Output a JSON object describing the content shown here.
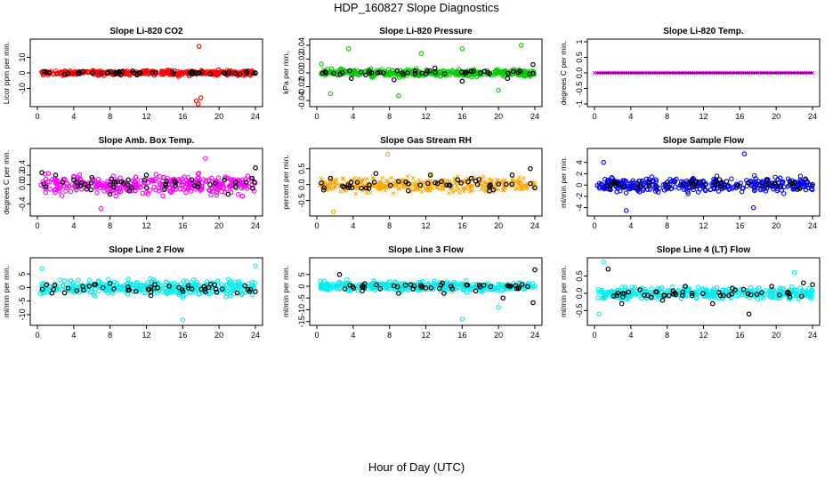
{
  "title": "HDP_160827  Slope Diagnostics",
  "xlabel": "Hour of Day (UTC)",
  "chart_data": [
    {
      "type": "scatter",
      "title": "Slope Li-820 CO2",
      "ylabel": "Licor ppm per min.",
      "ylim": [
        -20,
        20
      ],
      "yticks": [
        -10,
        0,
        10
      ],
      "xlim": [
        0,
        24
      ],
      "xticks": [
        0,
        4,
        8,
        12,
        16,
        20,
        24
      ],
      "color": "#ff0000",
      "marker": "o",
      "spread": 2.0,
      "dark_series": [
        {
          "x": 1,
          "y": 0.5
        },
        {
          "x": 3,
          "y": -1
        },
        {
          "x": 5,
          "y": 1
        },
        {
          "x": 7,
          "y": -0.5
        },
        {
          "x": 9,
          "y": 0.8
        },
        {
          "x": 11,
          "y": -1.2
        },
        {
          "x": 13,
          "y": 0.3
        },
        {
          "x": 15,
          "y": -0.4
        },
        {
          "x": 17,
          "y": 1.1
        },
        {
          "x": 19,
          "y": -0.7
        },
        {
          "x": 21,
          "y": 0.2
        },
        {
          "x": 23,
          "y": 0.9
        },
        {
          "x": 24,
          "y": -0.2
        }
      ],
      "outliers": [
        {
          "x": 17.8,
          "y": 17
        },
        {
          "x": 17.5,
          "y": -18
        },
        {
          "x": 17.7,
          "y": -20
        },
        {
          "x": 18,
          "y": -16
        }
      ]
    },
    {
      "type": "scatter",
      "title": "Slope Li-820 Pressure",
      "ylabel": "kPa per min.",
      "ylim": [
        -0.045,
        0.045
      ],
      "yticks": [
        -0.04,
        -0.02,
        0.0,
        0.02,
        0.04
      ],
      "xlim": [
        0,
        24
      ],
      "xticks": [
        0,
        4,
        8,
        12,
        16,
        20,
        24
      ],
      "color": "#00cc00",
      "marker": "o",
      "spread": 0.006,
      "dark_series": [
        {
          "x": 1,
          "y": 0
        },
        {
          "x": 3.8,
          "y": -0.008
        },
        {
          "x": 6,
          "y": 0
        },
        {
          "x": 8.5,
          "y": -0.01
        },
        {
          "x": 10,
          "y": 0
        },
        {
          "x": 13,
          "y": 0.007
        },
        {
          "x": 16,
          "y": -0.012
        },
        {
          "x": 18,
          "y": 0
        },
        {
          "x": 21,
          "y": -0.008
        },
        {
          "x": 23.8,
          "y": 0.012
        }
      ],
      "outliers": [
        {
          "x": 0.5,
          "y": 0.013
        },
        {
          "x": 1.5,
          "y": -0.03
        },
        {
          "x": 3.5,
          "y": 0.035
        },
        {
          "x": 9,
          "y": -0.033
        },
        {
          "x": 11.5,
          "y": 0.028
        },
        {
          "x": 16,
          "y": 0.035
        },
        {
          "x": 22.5,
          "y": 0.04
        },
        {
          "x": 20,
          "y": -0.025
        }
      ]
    },
    {
      "type": "scatter",
      "title": "Slope Li-820 Temp.",
      "ylabel": "degrees C per min.",
      "ylim": [
        -1,
        1
      ],
      "yticks": [
        -1.0,
        -0.5,
        0.0,
        0.5,
        1.0
      ],
      "xlim": [
        0,
        24
      ],
      "xticks": [
        0,
        4,
        8,
        12,
        16,
        20,
        24
      ],
      "color": "#ff00ff",
      "marker": "x",
      "spread": 0.0,
      "dark_series": [],
      "outliers": []
    },
    {
      "type": "scatter",
      "title": "Slope Amb. Box Temp.",
      "ylabel": "degrees C per min.",
      "ylim": [
        -0.6,
        0.7
      ],
      "yticks": [
        -0.4,
        0.0,
        0.2,
        0.4
      ],
      "xlim": [
        0,
        24
      ],
      "xticks": [
        0,
        4,
        8,
        12,
        16,
        20,
        24
      ],
      "color": "#ff00ff",
      "marker": "o",
      "spread": 0.25,
      "dark_series": [
        {
          "x": 0.5,
          "y": 0.25
        },
        {
          "x": 2,
          "y": 0.2
        },
        {
          "x": 4,
          "y": 0.1
        },
        {
          "x": 6,
          "y": 0.15
        },
        {
          "x": 8,
          "y": -0.2
        },
        {
          "x": 10,
          "y": 0.1
        },
        {
          "x": 12,
          "y": 0.2
        },
        {
          "x": 14,
          "y": -0.1
        },
        {
          "x": 17,
          "y": 0.1
        },
        {
          "x": 19,
          "y": 0.0
        },
        {
          "x": 21,
          "y": -0.2
        },
        {
          "x": 23,
          "y": 0.05
        },
        {
          "x": 24,
          "y": 0.35
        }
      ],
      "outliers": [
        {
          "x": 18.5,
          "y": 0.55
        },
        {
          "x": 7,
          "y": -0.5
        }
      ]
    },
    {
      "type": "scatter",
      "title": "Slope Gas Stream RH",
      "ylabel": "percent per min.",
      "ylim": [
        -0.9,
        1.05
      ],
      "yticks": [
        -0.5,
        0.0,
        0.5
      ],
      "xlim": [
        0,
        24
      ],
      "xticks": [
        0,
        4,
        8,
        12,
        16,
        20,
        24
      ],
      "color": "#ffa500",
      "marker": "x",
      "spread": 0.28,
      "dark_series": [
        {
          "x": 1.5,
          "y": 0.2
        },
        {
          "x": 3.5,
          "y": -0.1
        },
        {
          "x": 6.5,
          "y": 0.35
        },
        {
          "x": 9,
          "y": 0.1
        },
        {
          "x": 12.5,
          "y": 0.3
        },
        {
          "x": 15.5,
          "y": 0.15
        },
        {
          "x": 17,
          "y": 0.2
        },
        {
          "x": 19,
          "y": -0.2
        },
        {
          "x": 21.5,
          "y": 0.3
        },
        {
          "x": 23.5,
          "y": 0.5
        },
        {
          "x": 24,
          "y": -0.1
        }
      ],
      "outliers": [
        {
          "x": 7.8,
          "y": 0.95
        },
        {
          "x": 1.8,
          "y": -0.85
        }
      ]
    },
    {
      "type": "scatter",
      "title": "Slope Sample Flow",
      "ylabel": "ml/min per min.",
      "ylim": [
        -5,
        6
      ],
      "yticks": [
        -4,
        -2,
        0,
        2,
        4
      ],
      "xlim": [
        0,
        24
      ],
      "xticks": [
        0,
        4,
        8,
        12,
        16,
        20,
        24
      ],
      "color": "#0000ff",
      "marker": "o",
      "spread": 1.6,
      "dark_series": [
        {
          "x": 2,
          "y": 0.2
        },
        {
          "x": 5,
          "y": -0.3
        },
        {
          "x": 8,
          "y": 0.5
        },
        {
          "x": 11,
          "y": 0.1
        },
        {
          "x": 14,
          "y": -0.4
        },
        {
          "x": 17,
          "y": 0.3
        },
        {
          "x": 20,
          "y": -0.2
        },
        {
          "x": 22,
          "y": 0.4
        },
        {
          "x": 24,
          "y": 0.1
        }
      ],
      "outliers": [
        {
          "x": 1,
          "y": 4
        },
        {
          "x": 3.5,
          "y": -4.5
        },
        {
          "x": 16.5,
          "y": 5.5
        },
        {
          "x": 17.5,
          "y": -4
        }
      ]
    },
    {
      "type": "scatter",
      "title": "Slope Line 2 Flow",
      "ylabel": "ml/min per min.",
      "ylim": [
        -13,
        10
      ],
      "yticks": [
        -10,
        -5,
        0,
        5
      ],
      "xlim": [
        0,
        24
      ],
      "xticks": [
        0,
        4,
        8,
        12,
        16,
        20,
        24
      ],
      "color": "#00eeee",
      "marker": "o",
      "spread": 3.5,
      "dark_series": [
        {
          "x": 1,
          "y": 1
        },
        {
          "x": 3,
          "y": -2
        },
        {
          "x": 5,
          "y": 0.5
        },
        {
          "x": 8,
          "y": 1.5
        },
        {
          "x": 10,
          "y": -1
        },
        {
          "x": 12.5,
          "y": -3
        },
        {
          "x": 14.5,
          "y": 0.5
        },
        {
          "x": 17,
          "y": -0.5
        },
        {
          "x": 19.5,
          "y": 1
        },
        {
          "x": 22,
          "y": -2
        },
        {
          "x": 24,
          "y": -1.5
        }
      ],
      "outliers": [
        {
          "x": 16,
          "y": -12
        },
        {
          "x": 24,
          "y": 8
        },
        {
          "x": 0.5,
          "y": 7
        }
      ]
    },
    {
      "type": "scatter",
      "title": "Slope Line 3 Flow",
      "ylabel": "ml/min per min.",
      "ylim": [
        -15.5,
        11
      ],
      "yticks": [
        -15,
        -10,
        -5,
        0,
        5
      ],
      "xlim": [
        0,
        24
      ],
      "xticks": [
        0,
        4,
        8,
        12,
        16,
        20,
        24
      ],
      "color": "#00eeee",
      "marker": "o",
      "spread": 2.5,
      "dark_series": [
        {
          "x": 2.5,
          "y": 5
        },
        {
          "x": 5,
          "y": -2
        },
        {
          "x": 7,
          "y": -1
        },
        {
          "x": 9,
          "y": -3
        },
        {
          "x": 11.5,
          "y": -0.5
        },
        {
          "x": 14,
          "y": -3
        },
        {
          "x": 17.5,
          "y": -2
        },
        {
          "x": 20.5,
          "y": -5
        },
        {
          "x": 22,
          "y": -1
        },
        {
          "x": 23.8,
          "y": -7
        },
        {
          "x": 24,
          "y": 7
        }
      ],
      "outliers": [
        {
          "x": 16,
          "y": -14
        },
        {
          "x": 20,
          "y": -9
        }
      ]
    },
    {
      "type": "scatter",
      "title": "Slope Line 4 (LT) Flow",
      "ylabel": "ml/min per min.",
      "ylim": [
        -0.85,
        0.95
      ],
      "yticks": [
        -0.5,
        0.0,
        0.5
      ],
      "xlim": [
        0,
        24
      ],
      "xticks": [
        0,
        4,
        8,
        12,
        16,
        20,
        24
      ],
      "color": "#00eeee",
      "marker": "o",
      "spread": 0.22,
      "dark_series": [
        {
          "x": 1.5,
          "y": 0.7
        },
        {
          "x": 3,
          "y": -0.3
        },
        {
          "x": 5,
          "y": 0.1
        },
        {
          "x": 7.5,
          "y": -0.2
        },
        {
          "x": 10,
          "y": 0.2
        },
        {
          "x": 13,
          "y": -0.3
        },
        {
          "x": 15.5,
          "y": 0.1
        },
        {
          "x": 17,
          "y": -0.6
        },
        {
          "x": 19.5,
          "y": 0.2
        },
        {
          "x": 21.5,
          "y": -0.1
        },
        {
          "x": 23,
          "y": 0.3
        },
        {
          "x": 24,
          "y": 0.25
        }
      ],
      "outliers": [
        {
          "x": 1,
          "y": 0.9
        },
        {
          "x": 0.5,
          "y": -0.6
        },
        {
          "x": 22,
          "y": 0.6
        }
      ]
    }
  ]
}
